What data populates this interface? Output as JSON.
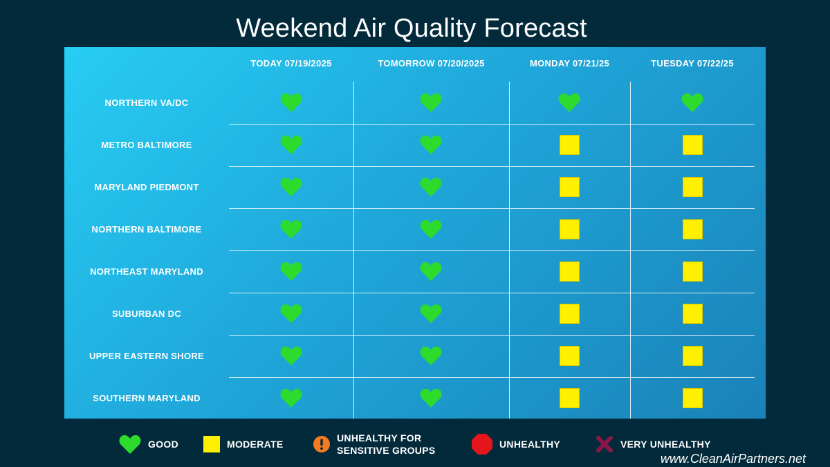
{
  "title": "Weekend Air Quality Forecast",
  "colors": {
    "good": "#2ddb2d",
    "moderate": "#ffef00",
    "usg": "#f47b20",
    "unhealthy": "#e3171b",
    "very_unhealthy": "#8a1748"
  },
  "columns": [
    {
      "label": "TODAY 07/19/2025"
    },
    {
      "label": "TOMORROW 07/20/2025"
    },
    {
      "label": "MONDAY 07/21/25"
    },
    {
      "label": "TUESDAY 07/22/25"
    }
  ],
  "rows": [
    {
      "region": "NORTHERN VA/DC",
      "ratings": [
        "good",
        "good",
        "good",
        "good"
      ]
    },
    {
      "region": "METRO BALTIMORE",
      "ratings": [
        "good",
        "good",
        "moderate",
        "moderate"
      ]
    },
    {
      "region": "MARYLAND PIEDMONT",
      "ratings": [
        "good",
        "good",
        "moderate",
        "moderate"
      ]
    },
    {
      "region": "NORTHERN BALTIMORE",
      "ratings": [
        "good",
        "good",
        "moderate",
        "moderate"
      ]
    },
    {
      "region": "NORTHEAST MARYLAND",
      "ratings": [
        "good",
        "good",
        "moderate",
        "moderate"
      ]
    },
    {
      "region": "SUBURBAN DC",
      "ratings": [
        "good",
        "good",
        "moderate",
        "moderate"
      ]
    },
    {
      "region": "UPPER EASTERN SHORE",
      "ratings": [
        "good",
        "good",
        "moderate",
        "moderate"
      ]
    },
    {
      "region": "SOUTHERN MARYLAND",
      "ratings": [
        "good",
        "good",
        "moderate",
        "moderate"
      ]
    }
  ],
  "legend": {
    "good": "GOOD",
    "moderate": "MODERATE",
    "usg_line1": "UNHEALTHY FOR",
    "usg_line2": "SENSITIVE GROUPS",
    "unhealthy": "UNHEALTHY",
    "very_unhealthy": "VERY UNHEALTHY"
  },
  "footer": "www.CleanAirPartners.net"
}
